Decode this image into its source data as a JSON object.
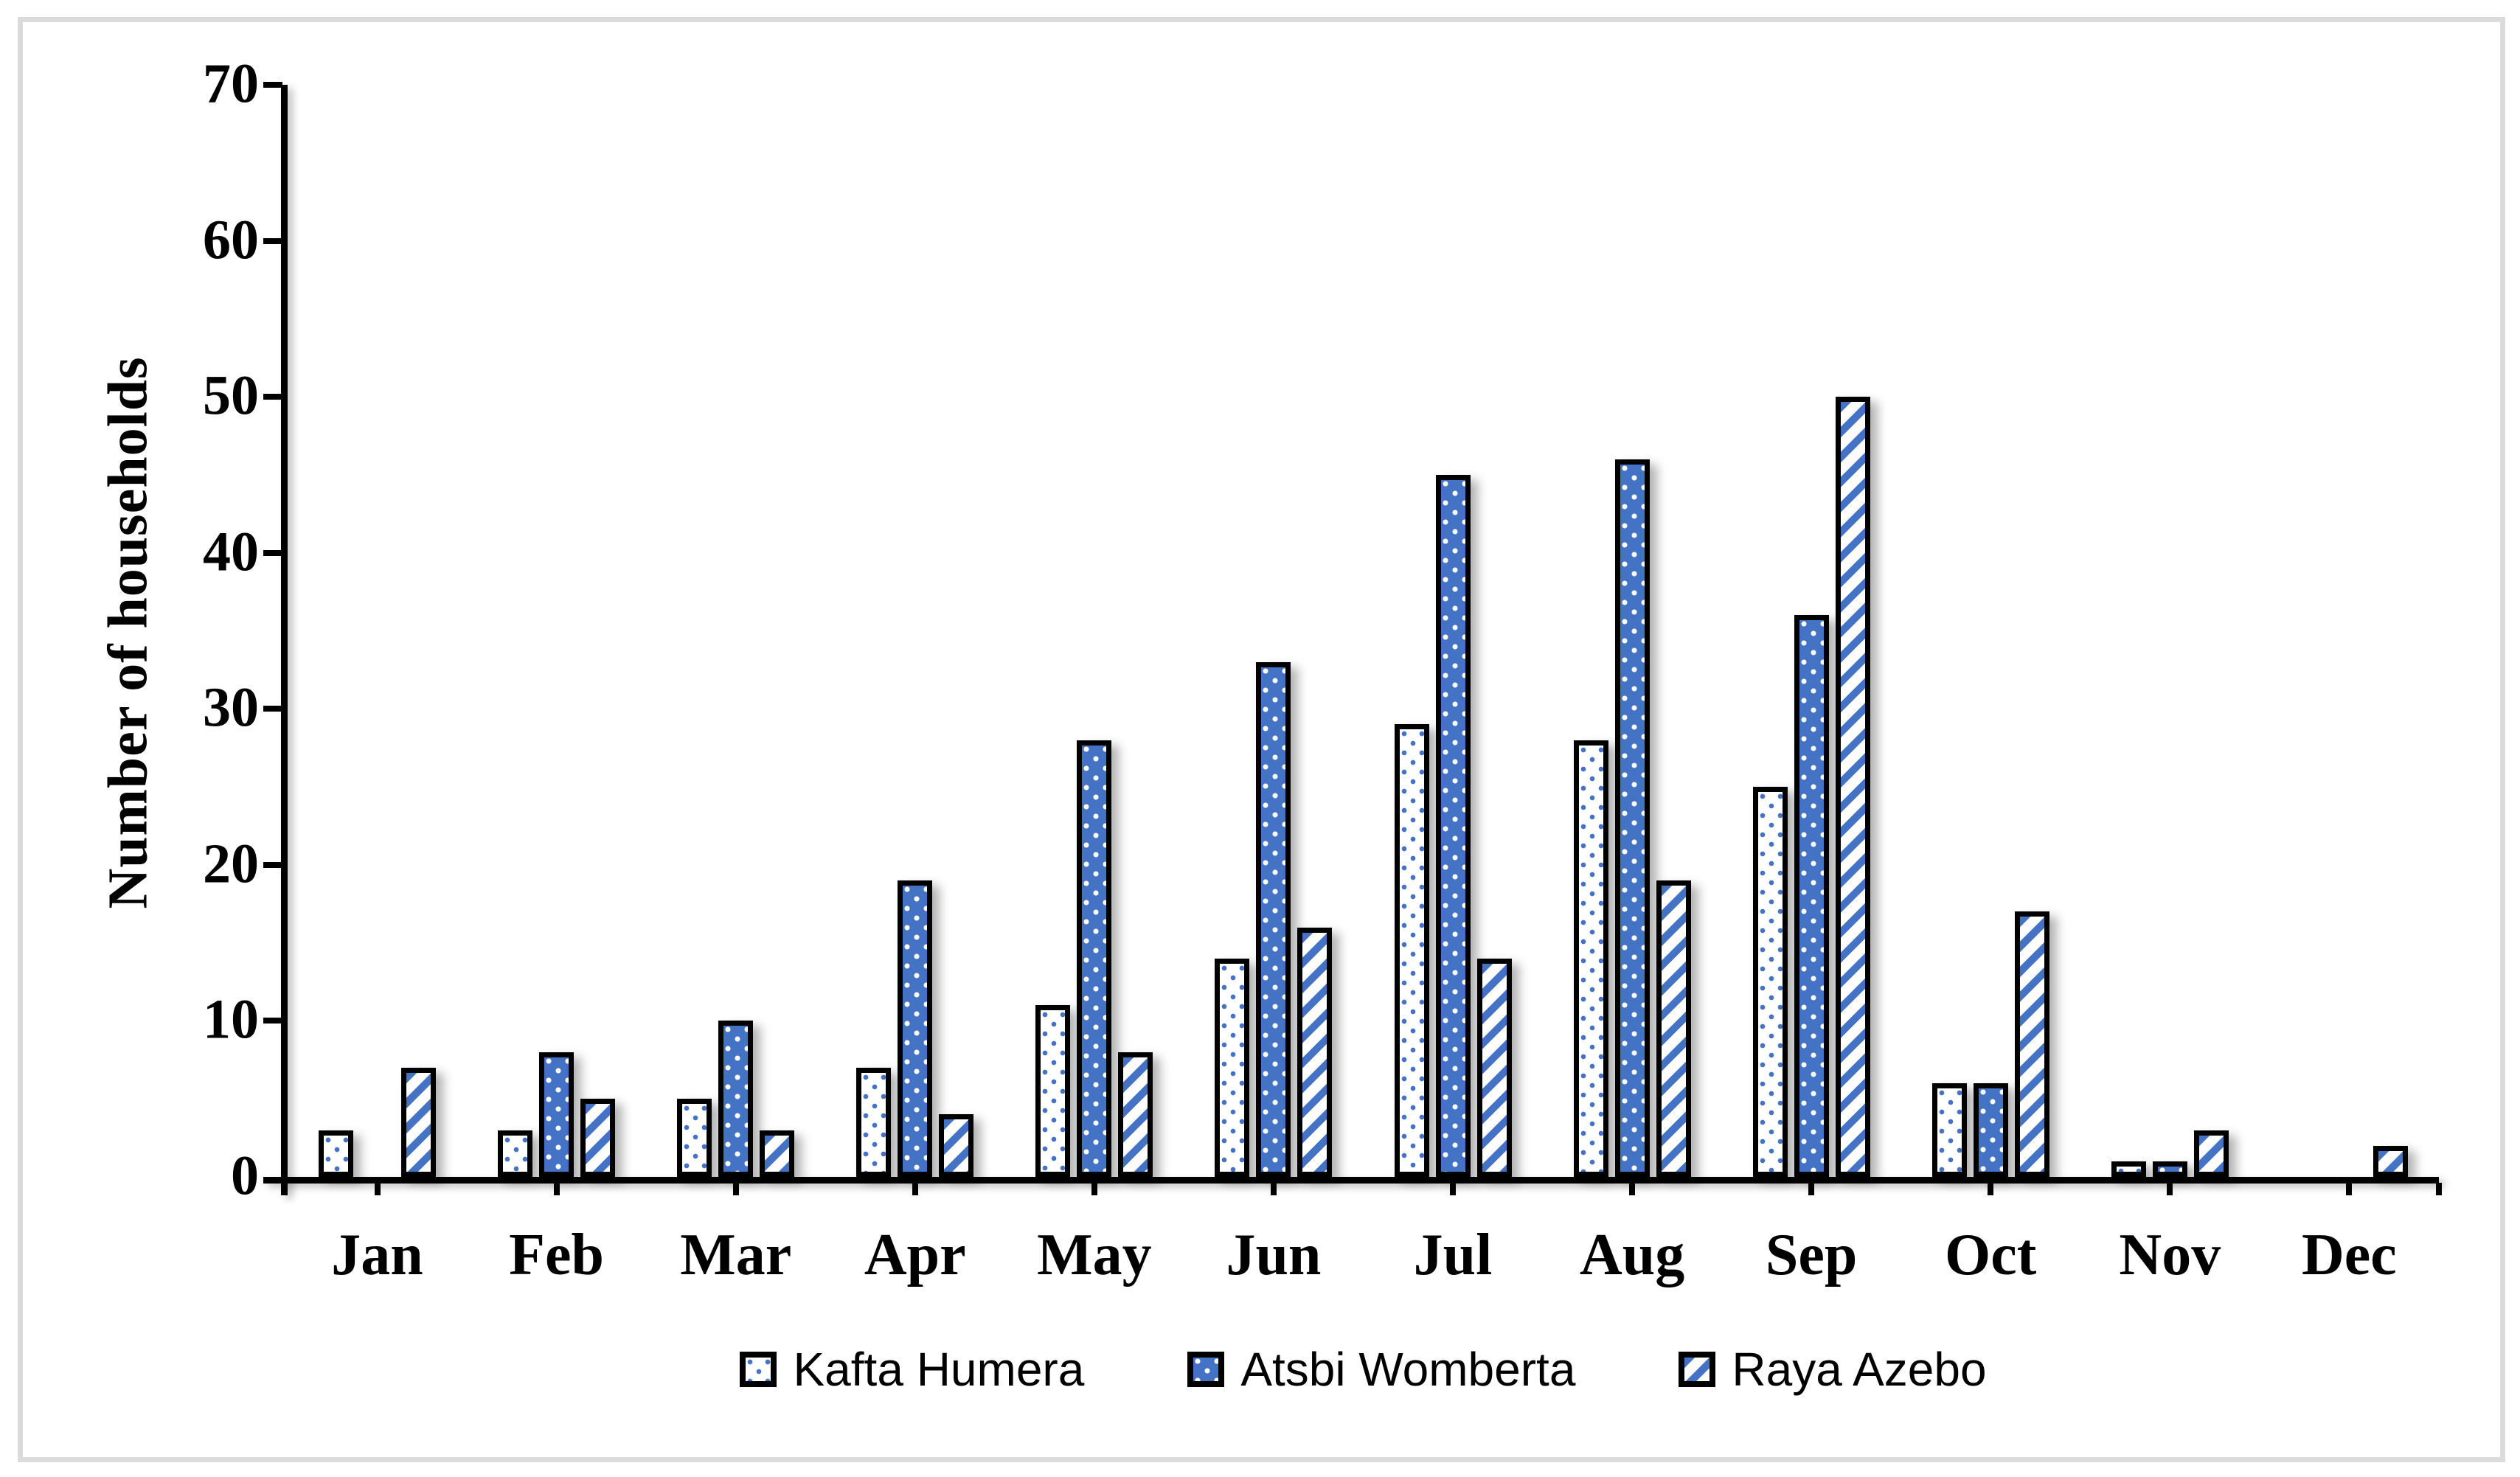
{
  "chart_data": {
    "type": "bar",
    "title": "",
    "ylabel": "Number of households",
    "xlabel": "",
    "categories": [
      "Jan",
      "Feb",
      "Mar",
      "Apr",
      "May",
      "Jun",
      "Jul",
      "Aug",
      "Sep",
      "Oct",
      "Nov",
      "Dec"
    ],
    "series": [
      {
        "name": "Kafta Humera",
        "pattern": "blue-dots-on-white",
        "values": [
          3,
          3,
          5,
          7,
          11,
          14,
          29,
          28,
          25,
          6,
          1,
          0
        ]
      },
      {
        "name": "Atsbi Womberta",
        "pattern": "white-dots-on-blue",
        "values": [
          0,
          8,
          10,
          19,
          28,
          33,
          45,
          46,
          36,
          6,
          1,
          0
        ]
      },
      {
        "name": "Raya Azebo",
        "pattern": "blue-diagonal-stripes",
        "values": [
          7,
          5,
          3,
          4,
          8,
          16,
          14,
          19,
          50,
          17,
          3,
          2
        ]
      }
    ],
    "ylim": [
      0,
      70
    ],
    "yticks": [
      0,
      10,
      20,
      30,
      40,
      50,
      60,
      70
    ],
    "grid": false,
    "legend_position": "bottom-center",
    "colors": {
      "accent_blue": "#4472C4",
      "bar_outline": "#000000",
      "frame_gray": "#dbdbdb"
    }
  }
}
